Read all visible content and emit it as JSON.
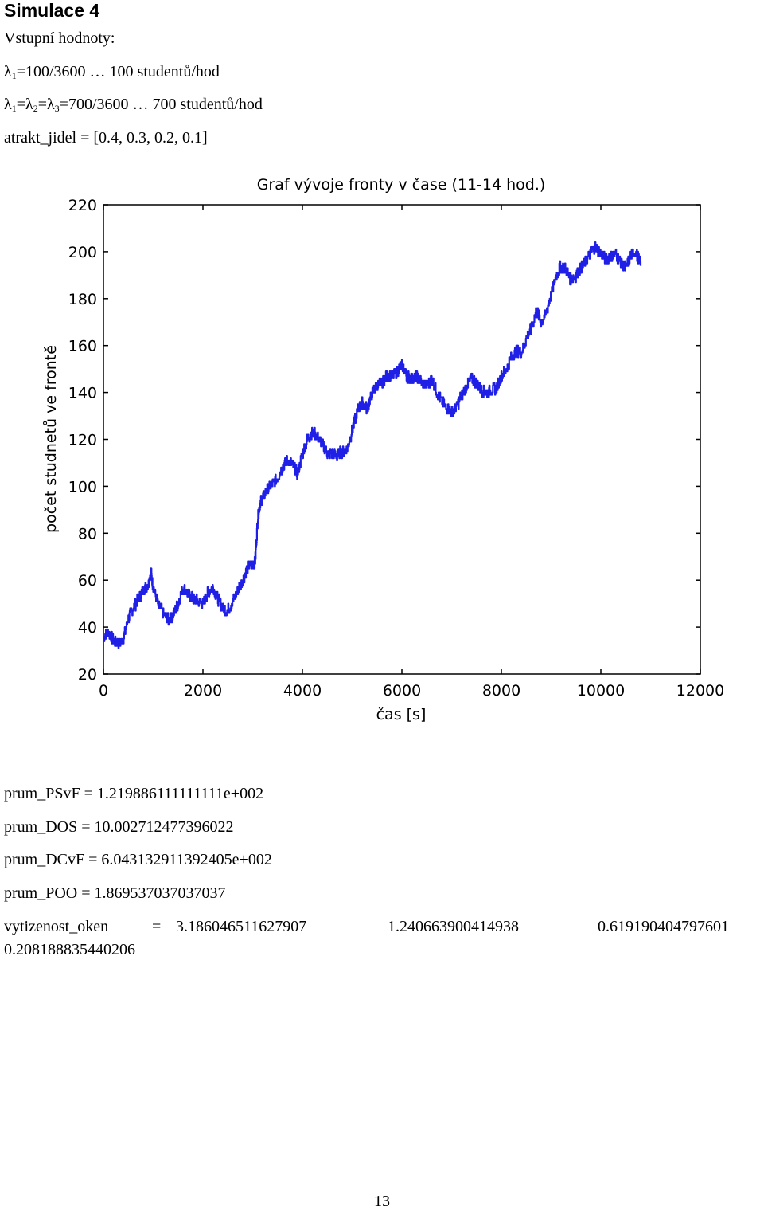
{
  "heading": "Simulace 4",
  "inputs": {
    "label": "Vstupní hodnoty:",
    "lambda1_symbol": "λ",
    "lambda1_sub": "1",
    "lambda1_rest": "=100/3600 … 100 studentů/hod",
    "lambda_multi_a": "λ",
    "lambda_multi_sub1": "1",
    "lambda_multi_b": "=λ",
    "lambda_multi_sub2": "2",
    "lambda_multi_c": "=λ",
    "lambda_multi_sub3": "3",
    "lambda_multi_rest": "=700/3600 … 700 studentů/hod",
    "attract": "atrakt_jidel = [0.4, 0.3, 0.2, 0.1]"
  },
  "chart_data": {
    "type": "line",
    "title": "Graf vývoje fronty v čase (11-14 hod.)",
    "xlabel": "čas [s]",
    "ylabel": "počet studnetů ve frontě",
    "xlim": [
      0,
      12000
    ],
    "ylim": [
      20,
      220
    ],
    "xticks": [
      0,
      2000,
      4000,
      6000,
      8000,
      10000,
      12000
    ],
    "yticks": [
      20,
      40,
      60,
      80,
      100,
      120,
      140,
      160,
      180,
      200,
      220
    ],
    "xtick_labels": [
      "0",
      "2000",
      "4000",
      "6000",
      "8000",
      "10000",
      "12000"
    ],
    "ytick_labels": [
      "20",
      "40",
      "60",
      "80",
      "100",
      "120",
      "140",
      "160",
      "180",
      "200",
      "220"
    ],
    "grid": false,
    "line_color": "#1f1fe6",
    "series": [
      {
        "values": [
          [
            0,
            36
          ],
          [
            100,
            38
          ],
          [
            200,
            34
          ],
          [
            300,
            33
          ],
          [
            400,
            35
          ],
          [
            500,
            44
          ],
          [
            600,
            48
          ],
          [
            700,
            52
          ],
          [
            800,
            56
          ],
          [
            900,
            58
          ],
          [
            950,
            64
          ],
          [
            1000,
            57
          ],
          [
            1100,
            49
          ],
          [
            1200,
            46
          ],
          [
            1300,
            43
          ],
          [
            1400,
            45
          ],
          [
            1500,
            50
          ],
          [
            1600,
            57
          ],
          [
            1700,
            54
          ],
          [
            1800,
            52
          ],
          [
            1900,
            51
          ],
          [
            2000,
            50
          ],
          [
            2100,
            55
          ],
          [
            2200,
            57
          ],
          [
            2300,
            52
          ],
          [
            2400,
            48
          ],
          [
            2500,
            47
          ],
          [
            2600,
            51
          ],
          [
            2700,
            56
          ],
          [
            2800,
            60
          ],
          [
            2900,
            66
          ],
          [
            3000,
            67
          ],
          [
            3050,
            68
          ],
          [
            3100,
            86
          ],
          [
            3150,
            93
          ],
          [
            3200,
            95
          ],
          [
            3300,
            99
          ],
          [
            3400,
            101
          ],
          [
            3500,
            104
          ],
          [
            3600,
            108
          ],
          [
            3700,
            111
          ],
          [
            3800,
            109
          ],
          [
            3900,
            105
          ],
          [
            4000,
            114
          ],
          [
            4100,
            120
          ],
          [
            4200,
            123
          ],
          [
            4300,
            121
          ],
          [
            4400,
            118
          ],
          [
            4500,
            114
          ],
          [
            4600,
            114
          ],
          [
            4700,
            113
          ],
          [
            4800,
            115
          ],
          [
            4900,
            116
          ],
          [
            5000,
            124
          ],
          [
            5100,
            132
          ],
          [
            5200,
            136
          ],
          [
            5300,
            133
          ],
          [
            5400,
            140
          ],
          [
            5500,
            143
          ],
          [
            5600,
            144
          ],
          [
            5700,
            147
          ],
          [
            5800,
            147
          ],
          [
            5900,
            149
          ],
          [
            6000,
            152
          ],
          [
            6100,
            147
          ],
          [
            6200,
            146
          ],
          [
            6300,
            147
          ],
          [
            6400,
            144
          ],
          [
            6500,
            143
          ],
          [
            6600,
            146
          ],
          [
            6700,
            140
          ],
          [
            6800,
            136
          ],
          [
            6900,
            133
          ],
          [
            7000,
            132
          ],
          [
            7100,
            134
          ],
          [
            7200,
            139
          ],
          [
            7300,
            143
          ],
          [
            7400,
            146
          ],
          [
            7500,
            144
          ],
          [
            7600,
            141
          ],
          [
            7700,
            140
          ],
          [
            7800,
            141
          ],
          [
            7900,
            142
          ],
          [
            8000,
            147
          ],
          [
            8100,
            150
          ],
          [
            8200,
            155
          ],
          [
            8300,
            158
          ],
          [
            8400,
            157
          ],
          [
            8500,
            163
          ],
          [
            8600,
            167
          ],
          [
            8700,
            175
          ],
          [
            8800,
            170
          ],
          [
            8900,
            174
          ],
          [
            9000,
            182
          ],
          [
            9100,
            190
          ],
          [
            9200,
            194
          ],
          [
            9300,
            192
          ],
          [
            9400,
            188
          ],
          [
            9500,
            190
          ],
          [
            9600,
            193
          ],
          [
            9700,
            196
          ],
          [
            9800,
            200
          ],
          [
            9900,
            202
          ],
          [
            10000,
            199
          ],
          [
            10100,
            197
          ],
          [
            10200,
            198
          ],
          [
            10300,
            199
          ],
          [
            10400,
            195
          ],
          [
            10500,
            193
          ],
          [
            10600,
            199
          ],
          [
            10700,
            200
          ],
          [
            10800,
            194
          ]
        ]
      }
    ]
  },
  "results": {
    "psvf": "prum_PSvF = 1.219886111111111e+002",
    "dos": "prum_DOS = 10.002712477396022",
    "dcvf": "prum_DCvF = 6.043132911392405e+002",
    "poo": "prum_POO = 1.869537037037037",
    "vyt_label": "vytizenost_oken",
    "vyt_eq": "=",
    "vyt_1": "3.186046511627907",
    "vyt_2": "1.240663900414938",
    "vyt_3": "0.619190404797601",
    "vyt_4": "0.208188835440206"
  },
  "page_number": "13"
}
